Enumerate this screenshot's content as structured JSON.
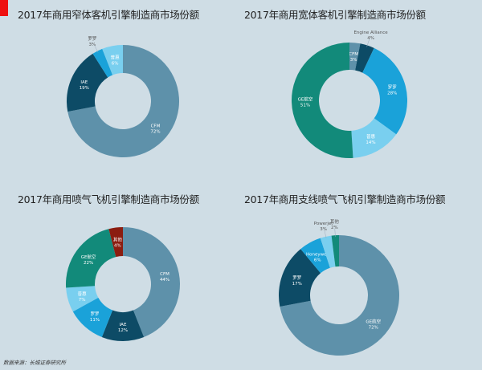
{
  "marker_color": "#ee1010",
  "source": "数据来源：长城证券研究所",
  "chart_data": [
    {
      "type": "pie",
      "title": "2017年商用窄体客机引擎制造商市场份额",
      "categories": [
        "CFM",
        "IAE",
        "罗罗",
        "普惠"
      ],
      "values": [
        72,
        19,
        3,
        6
      ],
      "colors": [
        "#5e91aa",
        "#0d4b66",
        "#1aa2d9",
        "#79cfef"
      ],
      "donut": true
    },
    {
      "type": "pie",
      "title": "2017年商用宽体客机引擎制造商市场份额",
      "categories": [
        "CFM",
        "Engine Alliance",
        "罗罗",
        "普惠",
        "GE航空"
      ],
      "values": [
        3,
        4,
        28,
        14,
        51
      ],
      "colors": [
        "#5e91aa",
        "#0d4b66",
        "#1aa2d9",
        "#79cfef",
        "#128a7a"
      ],
      "donut": true
    },
    {
      "type": "pie",
      "title": "2017年商用喷气飞机引擎制造商市场份额",
      "categories": [
        "CFM",
        "IAE",
        "罗罗",
        "普惠",
        "GE航空",
        "其他"
      ],
      "values": [
        44,
        12,
        11,
        7,
        22,
        4
      ],
      "colors": [
        "#5e91aa",
        "#0d4b66",
        "#1aa2d9",
        "#79cfef",
        "#128a7a",
        "#8b1d10"
      ],
      "donut": true
    },
    {
      "type": "pie",
      "title": "2017年商用支线喷气飞机引擎制造商市场份额",
      "categories": [
        "GE航空",
        "罗罗",
        "Honeywell",
        "Powerjet",
        "其他"
      ],
      "values": [
        72,
        17,
        6,
        3,
        2
      ],
      "colors": [
        "#5e91aa",
        "#0d4b66",
        "#1aa2d9",
        "#79cfef",
        "#128a7a"
      ],
      "donut": true
    }
  ]
}
